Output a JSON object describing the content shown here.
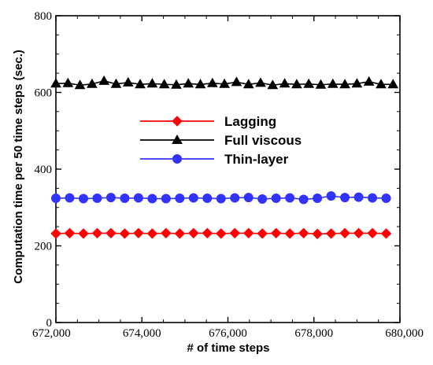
{
  "chart_data": {
    "type": "line",
    "xlabel": "# of time steps",
    "ylabel": "Computation time per 50 time steps (sec.)",
    "xlim": [
      672000,
      680000
    ],
    "ylim": [
      0,
      800
    ],
    "x_ticks": [
      672000,
      674000,
      676000,
      678000,
      680000
    ],
    "x_tick_labels": [
      "672,000",
      "674,000",
      "676,000",
      "678,000",
      "680,000"
    ],
    "y_ticks": [
      0,
      200,
      400,
      600,
      800
    ],
    "y_tick_labels": [
      "0",
      "200",
      "400",
      "600",
      "800"
    ],
    "grid": false,
    "legend_position": "center",
    "series": [
      {
        "name": "Lagging",
        "color": "#ff0000",
        "marker": "diamond",
        "x": [
          672000,
          672320,
          672640,
          672960,
          673280,
          673600,
          673920,
          674240,
          674560,
          674880,
          675200,
          675520,
          675840,
          676160,
          676480,
          676800,
          677120,
          677440,
          677760,
          678080,
          678400,
          678720,
          679040,
          679360,
          679680
        ],
        "values": [
          232,
          233,
          232,
          233,
          233,
          232,
          233,
          232,
          233,
          232,
          233,
          233,
          232,
          233,
          233,
          232,
          233,
          232,
          233,
          231,
          232,
          233,
          233,
          233,
          232
        ]
      },
      {
        "name": "Full viscous",
        "color": "#000000",
        "marker": "triangle",
        "x": [
          672000,
          672280,
          672560,
          672840,
          673120,
          673400,
          673680,
          673960,
          674240,
          674520,
          674800,
          675080,
          675360,
          675640,
          675920,
          676200,
          676480,
          676760,
          677040,
          677320,
          677600,
          677880,
          678160,
          678440,
          678720,
          679000,
          679280,
          679560,
          679840
        ],
        "values": [
          623,
          624,
          619,
          622,
          630,
          622,
          626,
          621,
          623,
          621,
          620,
          623,
          621,
          624,
          622,
          627,
          621,
          625,
          619,
          623,
          621,
          622,
          620,
          622,
          621,
          623,
          628,
          621,
          621
        ]
      },
      {
        "name": "Thin-layer",
        "color": "#3333ff",
        "marker": "circle",
        "x": [
          672000,
          672320,
          672640,
          672960,
          673280,
          673600,
          673920,
          674240,
          674560,
          674880,
          675200,
          675520,
          675840,
          676160,
          676480,
          676800,
          677120,
          677440,
          677760,
          678080,
          678400,
          678720,
          679040,
          679360,
          679680
        ],
        "values": [
          324,
          325,
          323,
          324,
          326,
          324,
          325,
          323,
          323,
          324,
          325,
          324,
          323,
          325,
          326,
          322,
          324,
          325,
          321,
          324,
          330,
          326,
          327,
          325,
          324
        ]
      }
    ]
  }
}
